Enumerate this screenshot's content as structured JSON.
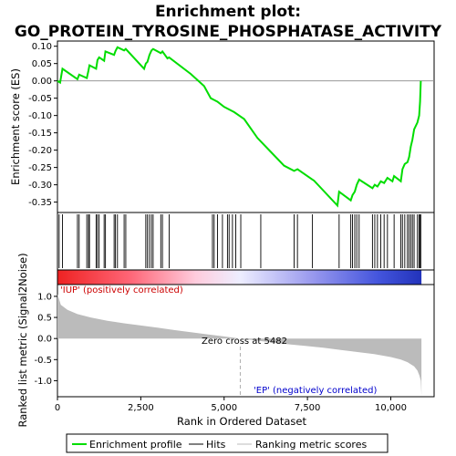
{
  "chart_data": {
    "type": "line",
    "title": "Enrichment plot:\nGO_PROTEIN_TYROSINE_PHOSPHATASE_ACTIVITY",
    "title_lines": [
      "Enrichment plot:",
      "GO_PROTEIN_TYROSINE_PHOSPHATASE_ACTIVITY"
    ],
    "es_panel": {
      "ylabel": "Enrichment score (ES)",
      "ylim": [
        -0.38,
        0.115
      ],
      "yticks": [
        0.1,
        0.05,
        0.0,
        -0.05,
        -0.1,
        -0.15,
        -0.2,
        -0.25,
        -0.3,
        -0.35
      ],
      "ytick_labels": [
        "0.10",
        "0.05",
        "0.00",
        "-0.05",
        "-0.10",
        "-0.15",
        "-0.20",
        "-0.25",
        "-0.30",
        "-0.35"
      ],
      "line_color": "#00dd00",
      "points": [
        [
          0,
          0.0
        ],
        [
          80,
          -0.005
        ],
        [
          150,
          0.035
        ],
        [
          600,
          0.005
        ],
        [
          650,
          0.018
        ],
        [
          880,
          0.008
        ],
        [
          930,
          0.03
        ],
        [
          960,
          0.045
        ],
        [
          1160,
          0.035
        ],
        [
          1200,
          0.06
        ],
        [
          1250,
          0.068
        ],
        [
          1400,
          0.058
        ],
        [
          1440,
          0.085
        ],
        [
          1700,
          0.075
        ],
        [
          1740,
          0.086
        ],
        [
          1800,
          0.097
        ],
        [
          2000,
          0.088
        ],
        [
          2050,
          0.092
        ],
        [
          2600,
          0.035
        ],
        [
          2650,
          0.05
        ],
        [
          2700,
          0.055
        ],
        [
          2760,
          0.075
        ],
        [
          2820,
          0.088
        ],
        [
          2870,
          0.092
        ],
        [
          3100,
          0.08
        ],
        [
          3150,
          0.085
        ],
        [
          3300,
          0.065
        ],
        [
          3350,
          0.068
        ],
        [
          4000,
          0.02
        ],
        [
          4400,
          -0.015
        ],
        [
          4600,
          -0.05
        ],
        [
          4700,
          -0.055
        ],
        [
          4800,
          -0.06
        ],
        [
          5000,
          -0.075
        ],
        [
          5200,
          -0.085
        ],
        [
          5300,
          -0.09
        ],
        [
          5600,
          -0.11
        ],
        [
          6000,
          -0.165
        ],
        [
          6400,
          -0.205
        ],
        [
          6800,
          -0.245
        ],
        [
          7100,
          -0.26
        ],
        [
          7200,
          -0.255
        ],
        [
          7650,
          -0.285
        ],
        [
          7700,
          -0.288
        ],
        [
          8400,
          -0.36
        ],
        [
          8450,
          -0.32
        ],
        [
          8800,
          -0.345
        ],
        [
          8850,
          -0.33
        ],
        [
          8920,
          -0.32
        ],
        [
          8980,
          -0.3
        ],
        [
          9050,
          -0.285
        ],
        [
          9450,
          -0.31
        ],
        [
          9520,
          -0.3
        ],
        [
          9600,
          -0.305
        ],
        [
          9700,
          -0.29
        ],
        [
          9800,
          -0.295
        ],
        [
          9900,
          -0.28
        ],
        [
          10050,
          -0.29
        ],
        [
          10100,
          -0.275
        ],
        [
          10300,
          -0.29
        ],
        [
          10350,
          -0.255
        ],
        [
          10420,
          -0.24
        ],
        [
          10500,
          -0.235
        ],
        [
          10550,
          -0.22
        ],
        [
          10600,
          -0.19
        ],
        [
          10650,
          -0.17
        ],
        [
          10700,
          -0.14
        ],
        [
          10800,
          -0.12
        ],
        [
          10850,
          -0.1
        ],
        [
          10880,
          -0.06
        ],
        [
          10900,
          0.0
        ]
      ]
    },
    "hits_panel": {
      "hit_positions": [
        50,
        150,
        600,
        650,
        880,
        930,
        960,
        1160,
        1200,
        1250,
        1400,
        1440,
        1700,
        1740,
        1800,
        2000,
        2050,
        2650,
        2700,
        2760,
        2820,
        2870,
        3100,
        3150,
        3350,
        4650,
        4700,
        4800,
        4950,
        5100,
        5150,
        5250,
        5350,
        5500,
        6100,
        7100,
        7200,
        7650,
        8450,
        8800,
        8850,
        8920,
        8980,
        9050,
        9450,
        9520,
        9600,
        9700,
        9800,
        9900,
        10100,
        10300,
        10350,
        10420,
        10500,
        10550,
        10600,
        10650,
        10700,
        10800,
        10850,
        10880,
        10900
      ]
    },
    "metric_panel": {
      "ylabel": "Ranked list metric (Signal2Noise)",
      "xlabel": "Rank in Ordered Dataset",
      "ylim": [
        -1.38,
        1.28
      ],
      "yticks": [
        1.0,
        0.5,
        0.0,
        -0.5,
        -1.0
      ],
      "ytick_labels": [
        "1.0",
        "0.5",
        "0.0",
        "-0.5",
        "-1.0"
      ],
      "xlim": [
        0,
        11300
      ],
      "xticks": [
        0,
        2500,
        5000,
        7500,
        10000
      ],
      "xtick_labels": [
        "0",
        "2,500",
        "5,000",
        "7,500",
        "10,000"
      ],
      "fill_color": "#bbbbbb",
      "profile": [
        [
          0,
          1.05
        ],
        [
          100,
          0.8
        ],
        [
          300,
          0.68
        ],
        [
          600,
          0.58
        ],
        [
          1000,
          0.5
        ],
        [
          1500,
          0.42
        ],
        [
          2000,
          0.36
        ],
        [
          2500,
          0.31
        ],
        [
          3000,
          0.26
        ],
        [
          3500,
          0.2
        ],
        [
          4000,
          0.15
        ],
        [
          4500,
          0.1
        ],
        [
          5000,
          0.05
        ],
        [
          5482,
          0.0
        ],
        [
          6000,
          -0.05
        ],
        [
          6500,
          -0.1
        ],
        [
          7000,
          -0.14
        ],
        [
          7500,
          -0.18
        ],
        [
          8000,
          -0.22
        ],
        [
          8500,
          -0.27
        ],
        [
          9000,
          -0.32
        ],
        [
          9500,
          -0.37
        ],
        [
          10000,
          -0.44
        ],
        [
          10300,
          -0.5
        ],
        [
          10500,
          -0.56
        ],
        [
          10700,
          -0.66
        ],
        [
          10800,
          -0.76
        ],
        [
          10860,
          -0.88
        ],
        [
          10900,
          -1.0
        ],
        [
          10920,
          -1.35
        ]
      ],
      "zero_cross_label": "Zero cross at 5482",
      "zero_cross_rank": 5482,
      "pos_label": "'IUP' (positively correlated)",
      "neg_label": "'EP' (negatively correlated)"
    },
    "legend": {
      "placement": "bottom",
      "entries": [
        {
          "label": "Enrichment profile",
          "color": "#00dd00"
        },
        {
          "label": "Hits",
          "color": "#000000"
        },
        {
          "label": "Ranking metric scores",
          "color": "#bbbbbb"
        }
      ]
    }
  }
}
